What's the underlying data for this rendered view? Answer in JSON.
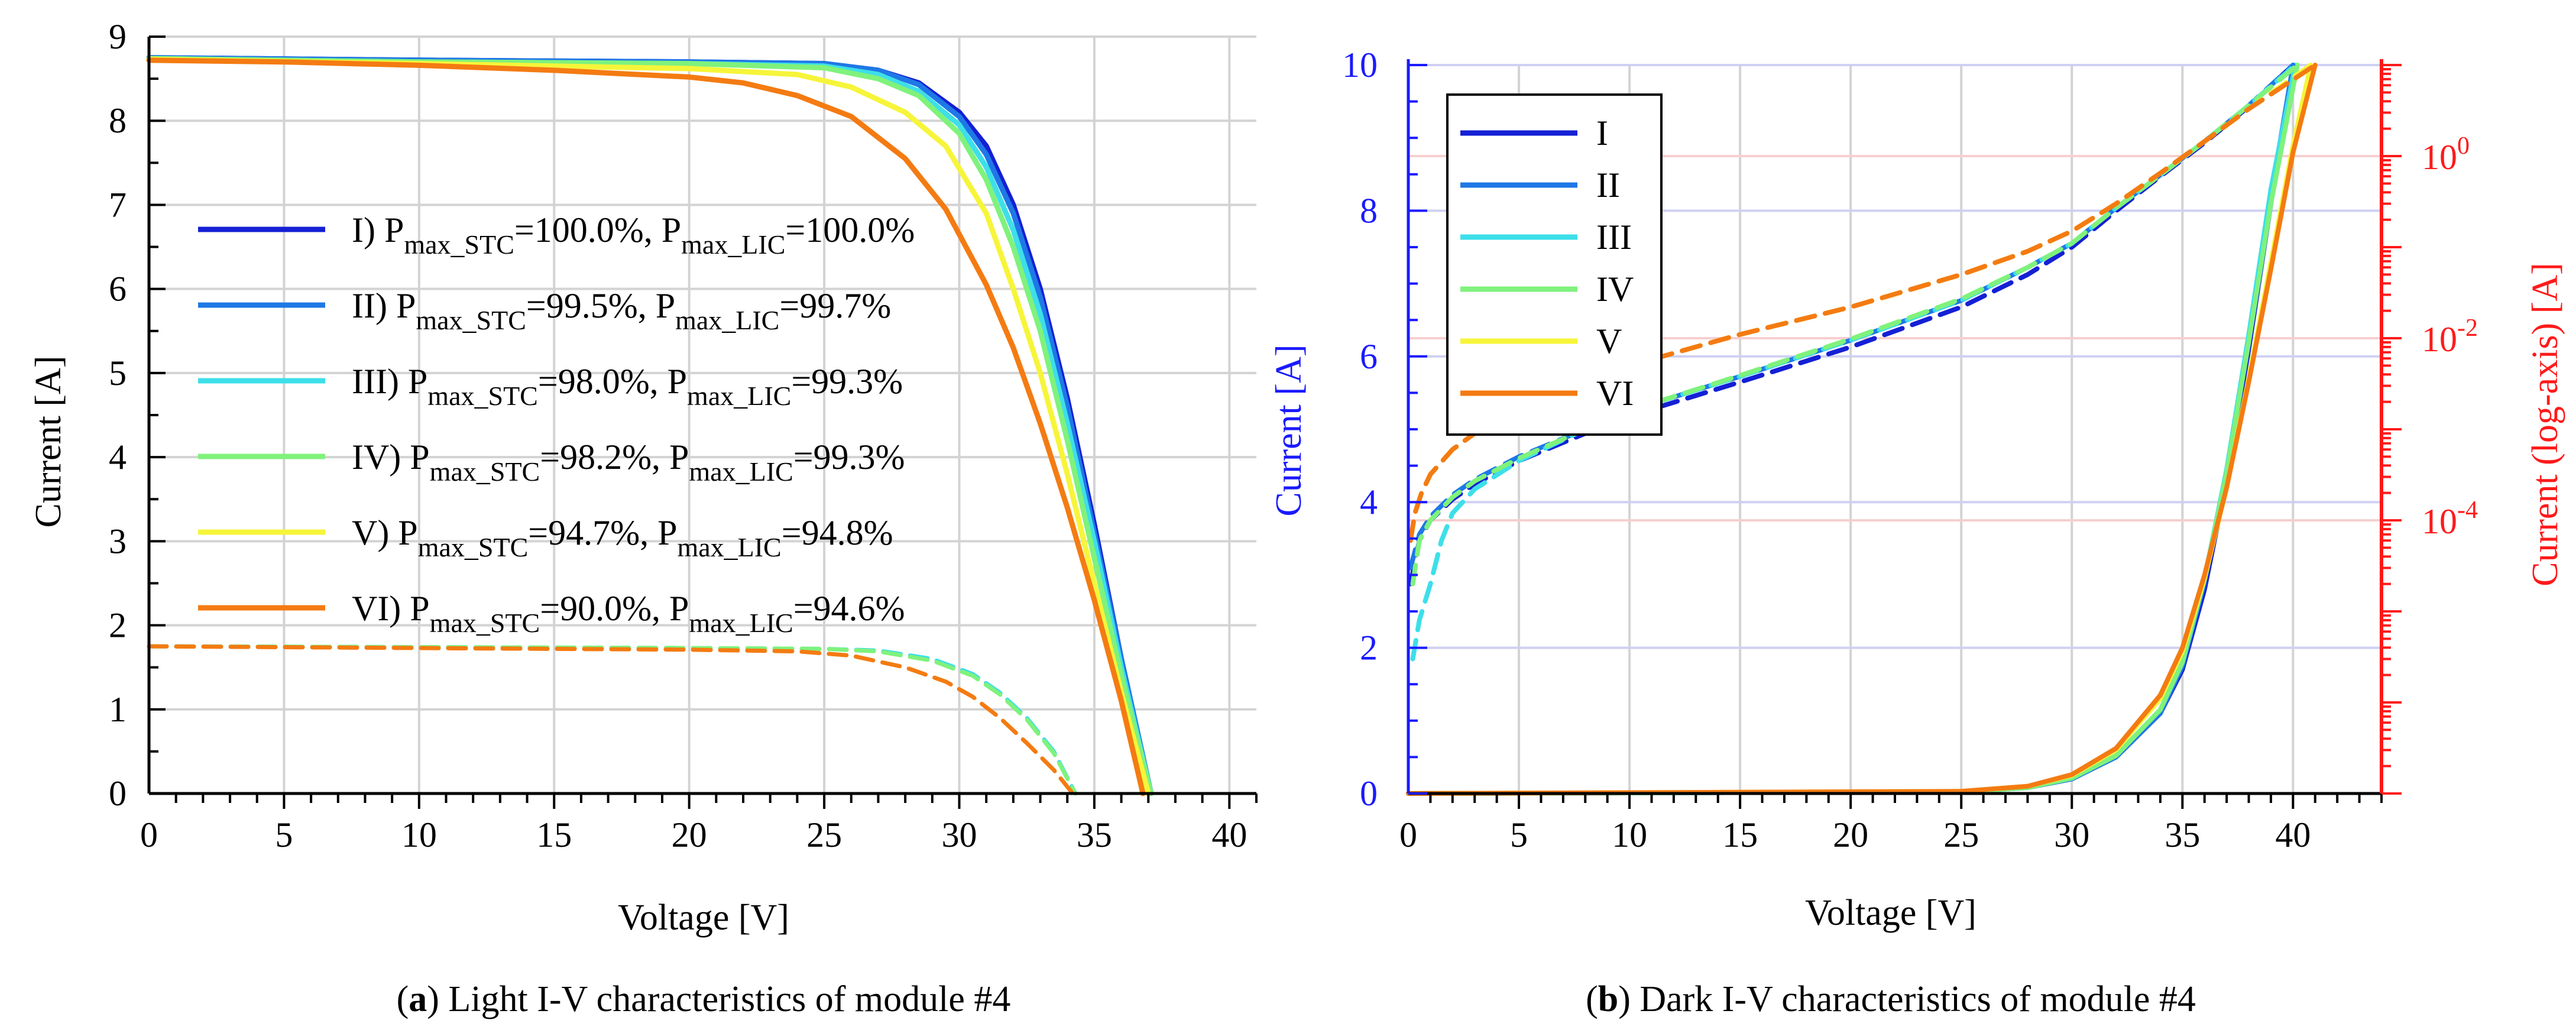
{
  "figure": {
    "series_colors": {
      "I": "#1420d4",
      "II": "#1f78e6",
      "III": "#3ddfe9",
      "IV": "#7ff27c",
      "V": "#f6f53a",
      "VI": "#f47b12"
    },
    "grid_color": "#d3d3d3",
    "left_axis_color": "#1a1aff",
    "right_axis_color": "#ff1a1a"
  },
  "chart_data": [
    {
      "type": "line",
      "panel": "a",
      "caption": {
        "label": "a",
        "text": ") Light I-V characteristics of module #4"
      },
      "title": "",
      "xlabel": "Voltage [V]",
      "ylabel": "Current [A]",
      "xlim": [
        0,
        41
      ],
      "ylim": [
        0,
        9
      ],
      "xticks": [
        0,
        5,
        10,
        15,
        20,
        25,
        30,
        35,
        40
      ],
      "yticks": [
        0,
        1,
        2,
        3,
        4,
        5,
        6,
        7,
        8,
        9
      ],
      "grid": true,
      "legend_position": "center-left",
      "legend": [
        {
          "id": "I",
          "prefix": " I) P",
          "sub1": "max_STC",
          "mid": "=100.0%, P",
          "sub2": "max_LIC",
          "suffix": "=100.0%"
        },
        {
          "id": "II",
          "prefix": "II) P",
          "sub1": "max_STC",
          "mid": "=99.5%, P",
          "sub2": "max_LIC",
          "suffix": "=99.7%"
        },
        {
          "id": "III",
          "prefix": "III) P",
          "sub1": "max_STC",
          "mid": "=98.0%, P",
          "sub2": "max_LIC",
          "suffix": "=99.3%"
        },
        {
          "id": "IV",
          "prefix": "IV) P",
          "sub1": "max_STC",
          "mid": "=98.2%, P",
          "sub2": "max_LIC",
          "suffix": "=99.3%"
        },
        {
          "id": "V",
          "prefix": " V) P",
          "sub1": "max_STC",
          "mid": "=94.7%, P",
          "sub2": "max_LIC",
          "suffix": "=94.8%"
        },
        {
          "id": "VI",
          "prefix": "VI) P",
          "sub1": "max_STC",
          "mid": "=90.0%, P",
          "sub2": "max_LIC",
          "suffix": "=94.6%"
        }
      ],
      "series": [
        {
          "name": "I",
          "style": "solid",
          "x": [
            0,
            10,
            20,
            25,
            27,
            28.5,
            30,
            31,
            32,
            33,
            34,
            35,
            36,
            37.1
          ],
          "y": [
            8.75,
            8.72,
            8.7,
            8.68,
            8.6,
            8.45,
            8.1,
            7.7,
            7.0,
            6.0,
            4.7,
            3.2,
            1.6,
            0.0
          ]
        },
        {
          "name": "II",
          "style": "solid",
          "x": [
            0,
            10,
            20,
            25,
            27,
            28.5,
            30,
            31,
            32,
            33,
            34,
            35,
            36,
            37.1
          ],
          "y": [
            8.75,
            8.72,
            8.7,
            8.68,
            8.6,
            8.43,
            8.05,
            7.6,
            6.9,
            5.9,
            4.6,
            3.1,
            1.6,
            0.0
          ]
        },
        {
          "name": "III",
          "style": "solid",
          "x": [
            0,
            10,
            20,
            25,
            27,
            28.5,
            30,
            31,
            32,
            33,
            34,
            35,
            36,
            37.1
          ],
          "y": [
            8.74,
            8.7,
            8.68,
            8.65,
            8.55,
            8.35,
            7.95,
            7.45,
            6.7,
            5.7,
            4.4,
            3.0,
            1.5,
            0.0
          ]
        },
        {
          "name": "IV",
          "style": "solid",
          "x": [
            0,
            10,
            20,
            25,
            27,
            28.5,
            30,
            31,
            32,
            33,
            34,
            35,
            36,
            37.1
          ],
          "y": [
            8.74,
            8.7,
            8.68,
            8.63,
            8.5,
            8.3,
            7.85,
            7.3,
            6.5,
            5.5,
            4.2,
            2.8,
            1.4,
            0.0
          ]
        },
        {
          "name": "V",
          "style": "solid",
          "x": [
            0,
            10,
            20,
            24,
            26,
            28,
            29.5,
            31,
            32,
            33,
            34,
            35,
            36,
            37.0
          ],
          "y": [
            8.73,
            8.68,
            8.62,
            8.55,
            8.4,
            8.1,
            7.7,
            6.9,
            6.0,
            5.0,
            3.8,
            2.5,
            1.2,
            0.0
          ]
        },
        {
          "name": "VI",
          "style": "solid",
          "x": [
            0,
            5,
            10,
            15,
            20,
            22,
            24,
            26,
            28,
            29.5,
            31,
            32,
            33,
            34,
            35,
            36,
            36.8
          ],
          "y": [
            8.72,
            8.7,
            8.66,
            8.6,
            8.52,
            8.45,
            8.3,
            8.05,
            7.55,
            6.95,
            6.05,
            5.3,
            4.4,
            3.4,
            2.3,
            1.1,
            0.0
          ]
        },
        {
          "name": "III",
          "style": "dashed",
          "x": [
            0,
            10,
            20,
            25,
            27,
            29,
            30.5,
            31.5,
            32.5,
            33.5,
            34.3
          ],
          "y": [
            1.75,
            1.74,
            1.73,
            1.72,
            1.7,
            1.6,
            1.42,
            1.2,
            0.9,
            0.5,
            0.0
          ]
        },
        {
          "name": "IV",
          "style": "dashed",
          "x": [
            0,
            10,
            20,
            25,
            27,
            29,
            30.5,
            31.5,
            32.5,
            33.5,
            34.3
          ],
          "y": [
            1.75,
            1.74,
            1.73,
            1.72,
            1.69,
            1.58,
            1.4,
            1.18,
            0.88,
            0.48,
            0.0
          ]
        },
        {
          "name": "VI",
          "style": "dashed",
          "x": [
            0,
            10,
            20,
            24,
            26,
            28,
            29.5,
            30.5,
            31.5,
            32.5,
            33.5,
            34.2
          ],
          "y": [
            1.75,
            1.73,
            1.71,
            1.69,
            1.64,
            1.5,
            1.33,
            1.15,
            0.9,
            0.6,
            0.28,
            0.0
          ]
        }
      ]
    },
    {
      "type": "line",
      "panel": "b",
      "caption": {
        "label": "b",
        "text": ") Dark I-V characteristics of module #4"
      },
      "title": "",
      "xlabel": "Voltage [V]",
      "ylabel": "Current [A]",
      "ylabel_right": "Current (log-axis) [A]",
      "xlim": [
        0,
        44
      ],
      "ylim": [
        0,
        10
      ],
      "ylim_right_log": [
        1e-07,
        10
      ],
      "xticks": [
        0,
        5,
        10,
        15,
        20,
        25,
        30,
        35,
        40
      ],
      "yticks": [
        0,
        2,
        4,
        6,
        8,
        10
      ],
      "yticks_right": [
        {
          "value": 1,
          "base": "10",
          "exp": "0"
        },
        {
          "value": 0.01,
          "base": "10",
          "exp": "-2"
        },
        {
          "value": 0.0001,
          "base": "10",
          "exp": "-4"
        }
      ],
      "grid": true,
      "legend_position": "top-left",
      "legend": [
        "I",
        "II",
        "III",
        "IV",
        "V",
        "VI"
      ],
      "series": [
        {
          "name": "I",
          "axis": "linear",
          "x": [
            0,
            25,
            28,
            30,
            32,
            34,
            35,
            36,
            37,
            38,
            39,
            40.0
          ],
          "y": [
            0,
            0.02,
            0.08,
            0.2,
            0.5,
            1.1,
            1.7,
            2.8,
            4.3,
            6.1,
            8.1,
            10
          ]
        },
        {
          "name": "II",
          "axis": "linear",
          "x": [
            0,
            25,
            28,
            30,
            32,
            34,
            35,
            36,
            37,
            38,
            39,
            40.0
          ],
          "y": [
            0,
            0.02,
            0.08,
            0.2,
            0.5,
            1.1,
            1.75,
            2.9,
            4.4,
            6.2,
            8.2,
            10
          ]
        },
        {
          "name": "III",
          "axis": "linear",
          "x": [
            0,
            25,
            28,
            30,
            32,
            34,
            35,
            36,
            37,
            38,
            39,
            40.1
          ],
          "y": [
            0,
            0.02,
            0.08,
            0.21,
            0.52,
            1.15,
            1.8,
            2.95,
            4.45,
            6.3,
            8.3,
            10
          ]
        },
        {
          "name": "IV",
          "axis": "linear",
          "x": [
            0,
            25,
            28,
            30,
            32,
            34,
            35,
            36,
            37,
            38,
            39,
            40.2
          ],
          "y": [
            0,
            0.02,
            0.08,
            0.21,
            0.52,
            1.15,
            1.8,
            2.95,
            4.4,
            6.2,
            8.1,
            10
          ]
        },
        {
          "name": "V",
          "axis": "linear",
          "x": [
            0,
            25,
            28,
            30,
            32,
            34,
            35,
            36,
            37,
            38,
            39,
            40,
            40.8
          ],
          "y": [
            0,
            0.03,
            0.1,
            0.25,
            0.6,
            1.3,
            1.95,
            2.95,
            4.2,
            5.7,
            7.3,
            8.9,
            10
          ]
        },
        {
          "name": "VI",
          "axis": "linear",
          "x": [
            0,
            25,
            28,
            30,
            32,
            34,
            35,
            36,
            37,
            38,
            39,
            40,
            41.0
          ],
          "y": [
            0,
            0.03,
            0.1,
            0.26,
            0.62,
            1.35,
            2.0,
            3.0,
            4.2,
            5.65,
            7.2,
            8.8,
            10
          ]
        },
        {
          "name": "I",
          "axis": "log",
          "x": [
            0.1,
            0.5,
            1,
            2,
            3,
            5,
            8,
            10,
            15,
            20,
            25,
            28,
            30,
            32,
            34,
            36,
            38,
            40.0
          ],
          "y": [
            2e-05,
            6e-05,
            0.0001,
            0.00017,
            0.00025,
            0.00045,
            0.0009,
            0.0014,
            0.0033,
            0.008,
            0.022,
            0.05,
            0.1,
            0.25,
            0.6,
            1.4,
            3.5,
            10
          ]
        },
        {
          "name": "II",
          "axis": "log",
          "x": [
            0.1,
            0.5,
            1,
            2,
            3,
            5,
            8,
            10,
            15,
            20,
            25,
            28,
            30,
            32,
            34,
            36,
            38,
            40.0
          ],
          "y": [
            3e-05,
            7e-05,
            0.00011,
            0.00019,
            0.00028,
            0.0005,
            0.001,
            0.0016,
            0.0038,
            0.0095,
            0.026,
            0.06,
            0.11,
            0.27,
            0.62,
            1.45,
            3.6,
            10
          ]
        },
        {
          "name": "III",
          "axis": "log",
          "x": [
            0.2,
            0.5,
            1,
            1.5,
            2,
            3,
            5,
            8,
            10,
            15,
            20,
            25,
            28,
            30,
            32,
            34,
            36,
            38,
            40.1
          ],
          "y": [
            3e-06,
            8e-06,
            2e-05,
            6e-05,
            0.00012,
            0.00022,
            0.00045,
            0.001,
            0.0016,
            0.0038,
            0.0095,
            0.026,
            0.06,
            0.11,
            0.27,
            0.62,
            1.45,
            3.6,
            10
          ]
        },
        {
          "name": "IV",
          "axis": "log",
          "x": [
            0.2,
            0.5,
            1,
            2,
            3,
            5,
            8,
            10,
            15,
            20,
            25,
            28,
            30,
            32,
            34,
            36,
            38,
            40.2
          ],
          "y": [
            2e-05,
            6e-05,
            0.0001,
            0.00018,
            0.00027,
            0.00048,
            0.001,
            0.0016,
            0.0039,
            0.0098,
            0.027,
            0.06,
            0.11,
            0.27,
            0.62,
            1.45,
            3.6,
            10
          ]
        },
        {
          "name": "V",
          "axis": "log",
          "x": [
            0.1,
            0.3,
            0.6,
            1,
            2,
            3,
            5,
            8,
            10,
            15,
            20,
            25,
            28,
            30,
            32,
            34,
            36,
            38,
            40.8
          ],
          "y": [
            6e-05,
            0.00012,
            0.0002,
            0.00032,
            0.0006,
            0.0009,
            0.0018,
            0.0035,
            0.005,
            0.011,
            0.022,
            0.05,
            0.09,
            0.15,
            0.3,
            0.65,
            1.45,
            3.3,
            10
          ]
        },
        {
          "name": "VI",
          "axis": "log",
          "x": [
            0.1,
            0.3,
            0.6,
            1,
            2,
            3,
            5,
            8,
            10,
            15,
            20,
            25,
            28,
            30,
            32,
            34,
            36,
            38,
            41.0
          ],
          "y": [
            6e-05,
            0.00012,
            0.0002,
            0.00032,
            0.0006,
            0.0009,
            0.0018,
            0.0035,
            0.005,
            0.011,
            0.022,
            0.05,
            0.09,
            0.15,
            0.3,
            0.65,
            1.45,
            3.3,
            10
          ]
        }
      ]
    }
  ]
}
